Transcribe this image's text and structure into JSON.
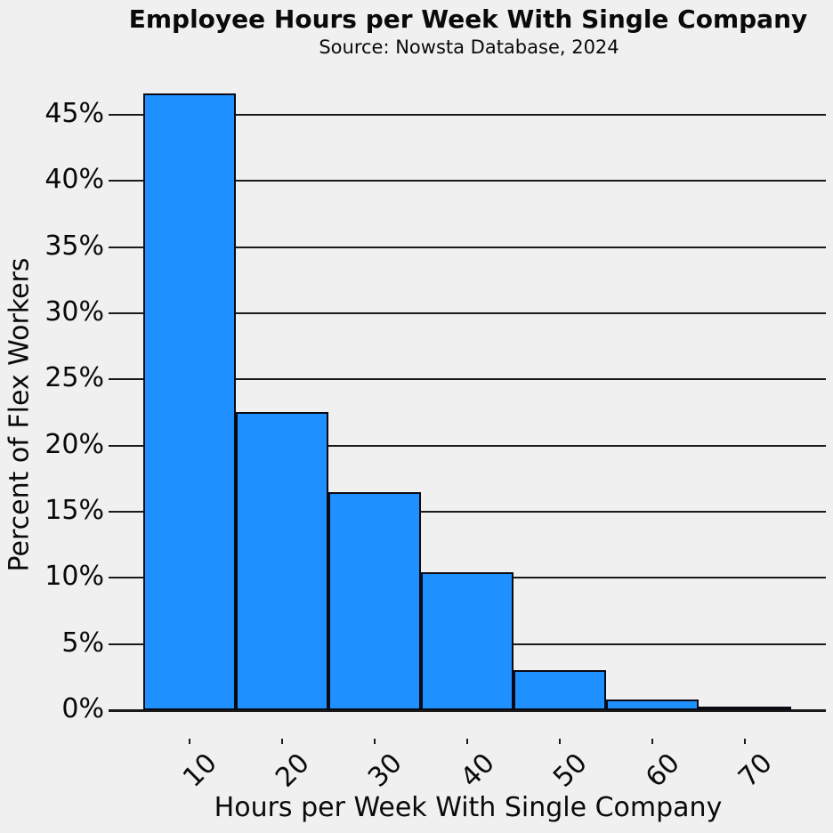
{
  "header": {
    "title": "Employee Hours per Week With Single Company",
    "subtitle": "Source: Nowsta Database, 2024"
  },
  "chart_data": {
    "type": "bar",
    "title": "Employee Hours per Week With Single Company",
    "subtitle": "Source: Nowsta Database, 2024",
    "categories": [
      "10",
      "20",
      "30",
      "40",
      "50",
      "60",
      "70"
    ],
    "values": [
      46.6,
      22.5,
      16.5,
      10.4,
      3.0,
      0.8,
      0.3
    ],
    "xlabel": "Hours per Week With Single Company",
    "ylabel": "Percent of Flex Workers",
    "yticks": [
      0,
      5,
      10,
      15,
      20,
      25,
      30,
      35,
      40,
      45
    ],
    "ytick_suffix": "%",
    "ylim": [
      0,
      47.5
    ],
    "grid": "horizontal",
    "legend": "none",
    "colors": {
      "bar_fill": "#1e90ff",
      "bar_edge": "#0a0a14",
      "background": "#f0f0f0",
      "gridline": "#1a1a1a",
      "text": "#0a0a0a"
    }
  }
}
